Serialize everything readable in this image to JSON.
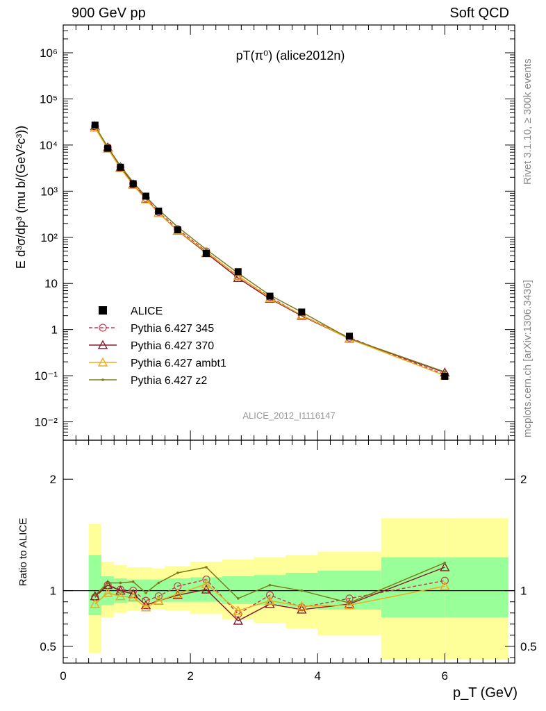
{
  "header": {
    "left_label": "900 GeV pp",
    "right_label": "Soft QCD",
    "rivet_note": "Rivet 3.1.10, ≥ 300k events",
    "mcplots_note": "mcplots.cern.ch [arXiv:1306.3436]"
  },
  "chart_data": {
    "type": "line",
    "title": "pT(π⁰) (alice2012n)",
    "analysis_id": "ALICE_2012_I1116147",
    "xlabel": "p_T (GeV)",
    "ylabel": "E d³σ/dp³ (mu b/(GeV²c³))",
    "ratio_ylabel": "Ratio to ALICE",
    "xlim": [
      0,
      7.1
    ],
    "ylim_main": [
      0.004,
      4000000
    ],
    "yscale_main": "log",
    "ylim_ratio": [
      0.35,
      2.35
    ],
    "x_ticks": [
      "0",
      "2",
      "4",
      "6"
    ],
    "main_y_ticks": [
      "10⁻²",
      "10⁻¹",
      "1",
      "10",
      "10²",
      "10³",
      "10⁴",
      "10⁵",
      "10⁶"
    ],
    "ratio_y_ticks": [
      "0.5",
      "1",
      "2"
    ],
    "legend": {
      "placement": "lower-left",
      "entries": [
        "ALICE",
        "Pythia 6.427 345",
        "Pythia 6.427 370",
        "Pythia 6.427 ambt1",
        "Pythia 6.427 z2"
      ]
    },
    "data": {
      "name": "ALICE",
      "color": "#000000",
      "x": [
        0.5,
        0.7,
        0.9,
        1.1,
        1.3,
        1.5,
        1.8,
        2.25,
        2.75,
        3.25,
        3.75,
        4.5,
        6.0
      ],
      "y": [
        27000,
        8500,
        3300,
        1450,
        780,
        370,
        145,
        45,
        18,
        5.3,
        2.4,
        0.72,
        0.097
      ]
    },
    "uncertainty_bands": [
      {
        "x_lo": 0.4,
        "x_hi": 0.6,
        "inner": [
          0.78,
          1.32
        ],
        "outer": [
          0.44,
          1.6
        ]
      },
      {
        "x_lo": 0.6,
        "x_hi": 0.8,
        "inner": [
          0.87,
          1.13
        ],
        "outer": [
          0.76,
          1.26
        ]
      },
      {
        "x_lo": 0.8,
        "x_hi": 1.0,
        "inner": [
          0.89,
          1.11
        ],
        "outer": [
          0.8,
          1.23
        ]
      },
      {
        "x_lo": 1.0,
        "x_hi": 1.2,
        "inner": [
          0.9,
          1.1
        ],
        "outer": [
          0.82,
          1.21
        ]
      },
      {
        "x_lo": 1.2,
        "x_hi": 1.4,
        "inner": [
          0.9,
          1.1
        ],
        "outer": [
          0.83,
          1.21
        ]
      },
      {
        "x_lo": 1.4,
        "x_hi": 1.6,
        "inner": [
          0.9,
          1.1
        ],
        "outer": [
          0.83,
          1.2
        ]
      },
      {
        "x_lo": 1.6,
        "x_hi": 2.0,
        "inner": [
          0.9,
          1.11
        ],
        "outer": [
          0.82,
          1.22
        ]
      },
      {
        "x_lo": 2.0,
        "x_hi": 2.5,
        "inner": [
          0.9,
          1.12
        ],
        "outer": [
          0.79,
          1.26
        ]
      },
      {
        "x_lo": 2.5,
        "x_hi": 3.0,
        "inner": [
          0.88,
          1.13
        ],
        "outer": [
          0.74,
          1.28
        ]
      },
      {
        "x_lo": 3.0,
        "x_hi": 3.5,
        "inner": [
          0.87,
          1.14
        ],
        "outer": [
          0.71,
          1.3
        ]
      },
      {
        "x_lo": 3.5,
        "x_hi": 4.0,
        "inner": [
          0.85,
          1.16
        ],
        "outer": [
          0.66,
          1.32
        ]
      },
      {
        "x_lo": 4.0,
        "x_hi": 5.0,
        "inner": [
          0.83,
          1.18
        ],
        "outer": [
          0.6,
          1.35
        ]
      },
      {
        "x_lo": 5.0,
        "x_hi": 6.0,
        "inner": [
          0.76,
          1.3
        ],
        "outer": [
          0.38,
          1.65
        ]
      },
      {
        "x_lo": 6.0,
        "x_hi": 7.0,
        "inner": [
          0.76,
          1.3
        ],
        "outer": [
          0.38,
          1.65
        ]
      }
    ],
    "series": [
      {
        "name": "Pythia 6.427 345",
        "color": "#c04050",
        "dash": true,
        "marker": "circle",
        "ratio": [
          0.94,
          1.05,
          1.01,
          1.0,
          0.91,
          0.95,
          1.04,
          1.1,
          0.79,
          0.96,
          0.85,
          0.93,
          1.09
        ]
      },
      {
        "name": "Pythia 6.427 370",
        "color": "#8b1a2b",
        "dash": false,
        "marker": "triangle",
        "ratio": [
          0.95,
          1.05,
          1.0,
          0.97,
          0.87,
          0.91,
          0.96,
          1.01,
          0.73,
          0.88,
          0.83,
          0.88,
          1.21
        ]
      },
      {
        "name": "Pythia 6.427 ambt1",
        "color": "#f0a820",
        "dash": false,
        "marker": "triangle",
        "ratio": [
          0.88,
          0.98,
          0.95,
          0.94,
          0.85,
          0.91,
          0.97,
          1.06,
          0.82,
          0.91,
          0.86,
          0.87,
          1.04
        ]
      },
      {
        "name": "Pythia 6.427 z2",
        "color": "#7b7d1a",
        "dash": false,
        "marker": "dot",
        "ratio": [
          0.96,
          1.07,
          1.07,
          1.08,
          0.98,
          1.07,
          1.16,
          1.21,
          0.93,
          1.05,
          1.0,
          0.89,
          1.25
        ]
      }
    ]
  }
}
